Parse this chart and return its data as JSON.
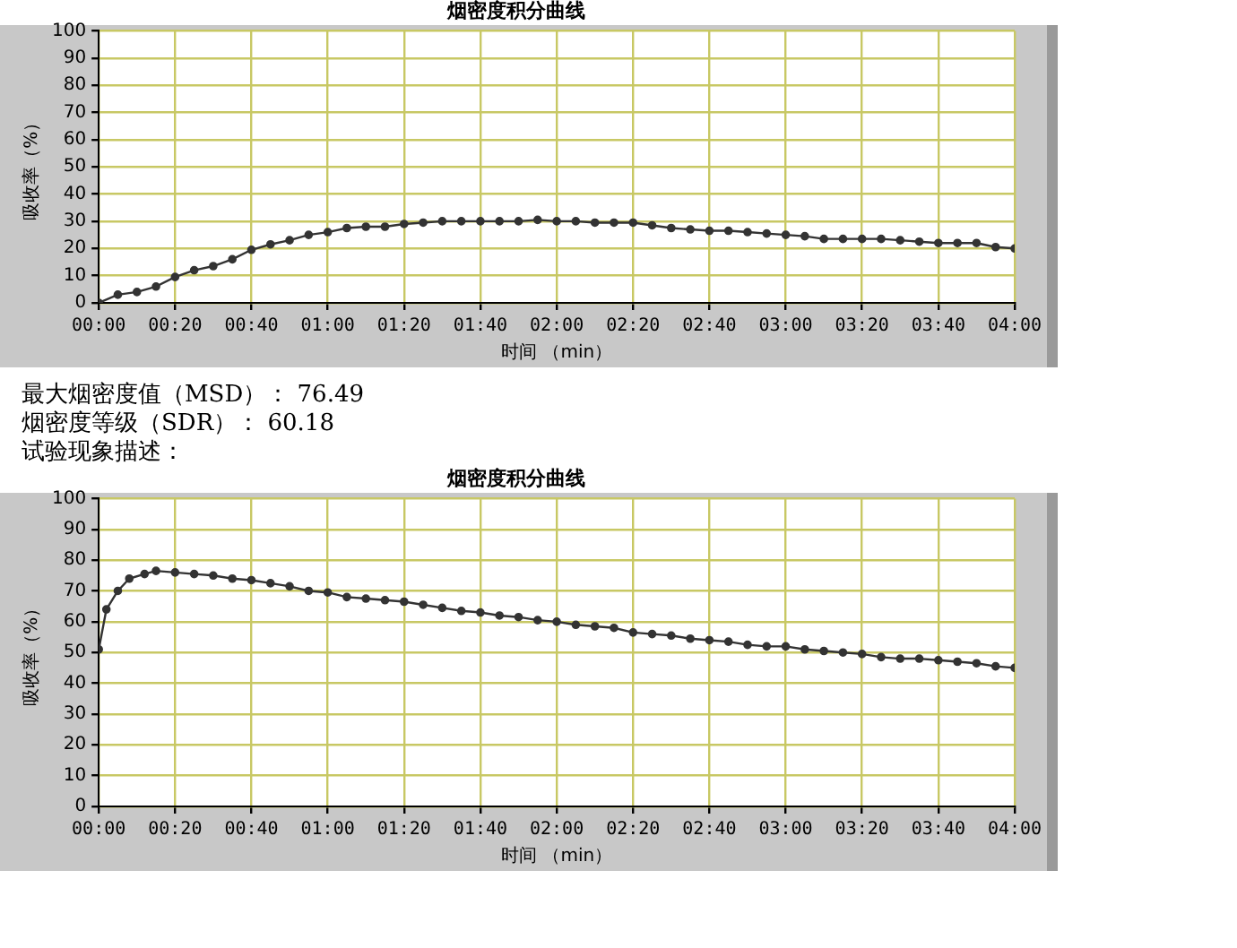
{
  "chart_data": [
    {
      "type": "line",
      "title": "烟密度积分曲线",
      "xlabel": "时间 （min）",
      "ylabel": "吸收率（%）",
      "x": [
        0,
        5,
        10,
        15,
        20,
        25,
        30,
        35,
        40,
        45,
        50,
        55,
        60,
        65,
        70,
        75,
        80,
        85,
        90,
        95,
        100,
        105,
        110,
        115,
        120,
        125,
        130,
        135,
        140,
        145,
        150,
        155,
        160,
        165,
        170,
        175,
        180,
        185,
        190,
        195,
        200,
        205,
        210,
        215,
        220,
        225,
        230,
        235,
        240
      ],
      "series": [
        {
          "color": "#333333",
          "values": [
            0,
            3,
            4,
            6,
            9.5,
            12,
            13.5,
            16,
            19.5,
            21.5,
            23,
            25,
            26,
            27.5,
            28,
            28,
            29,
            29.5,
            30,
            30,
            30,
            30,
            30,
            30.5,
            30,
            30,
            29.5,
            29.5,
            29.5,
            28.5,
            27.5,
            27,
            26.5,
            26.5,
            26,
            25.5,
            25,
            24.5,
            23.5,
            23.5,
            23.5,
            23.5,
            23,
            22.5,
            22,
            22,
            22,
            20.5,
            20
          ]
        }
      ],
      "xlim": [
        0,
        240
      ],
      "ylim": [
        0,
        100
      ],
      "xticks": [
        {
          "value": 0,
          "label": "00:00"
        },
        {
          "value": 20,
          "label": "00:20"
        },
        {
          "value": 40,
          "label": "00:40"
        },
        {
          "value": 60,
          "label": "01:00"
        },
        {
          "value": 80,
          "label": "01:20"
        },
        {
          "value": 100,
          "label": "01:40"
        },
        {
          "value": 120,
          "label": "02:00"
        },
        {
          "value": 140,
          "label": "02:20"
        },
        {
          "value": 160,
          "label": "02:40"
        },
        {
          "value": 180,
          "label": "03:00"
        },
        {
          "value": 200,
          "label": "03:20"
        },
        {
          "value": 220,
          "label": "03:40"
        },
        {
          "value": 240,
          "label": "04:00"
        }
      ],
      "yticks": [
        0,
        10,
        20,
        30,
        40,
        50,
        60,
        70,
        80,
        90,
        100
      ],
      "grid": true,
      "legend": false,
      "marker": "circle",
      "line_style": "solid"
    },
    {
      "type": "line",
      "title": "烟密度积分曲线",
      "xlabel": "时间 （min）",
      "ylabel": "吸收率（%）",
      "annotations": [
        "最大烟密度值（MSD）：  76.49",
        "烟密度等级（SDR）：  60.18",
        "试验现象描述："
      ],
      "x": [
        0,
        2,
        5,
        8,
        12,
        15,
        20,
        25,
        30,
        35,
        40,
        45,
        50,
        55,
        60,
        65,
        70,
        75,
        80,
        85,
        90,
        95,
        100,
        105,
        110,
        115,
        120,
        125,
        130,
        135,
        140,
        145,
        150,
        155,
        160,
        165,
        170,
        175,
        180,
        185,
        190,
        195,
        200,
        205,
        210,
        215,
        220,
        225,
        230,
        235,
        240
      ],
      "series": [
        {
          "color": "#333333",
          "values": [
            51,
            64,
            70,
            74,
            75.5,
            76.5,
            76,
            75.5,
            75,
            74,
            73.5,
            72.5,
            71.5,
            70,
            69.5,
            68,
            67.5,
            67,
            66.5,
            65.5,
            64.5,
            63.5,
            63,
            62,
            61.5,
            60.5,
            60,
            59,
            58.5,
            58,
            56.5,
            56,
            55.5,
            54.5,
            54,
            53.5,
            52.5,
            52,
            52,
            51,
            50.5,
            50,
            49.5,
            48.5,
            48,
            48,
            47.5,
            47,
            46.5,
            45.5,
            45
          ]
        }
      ],
      "xlim": [
        0,
        240
      ],
      "ylim": [
        0,
        100
      ],
      "xticks": [
        {
          "value": 0,
          "label": "00:00"
        },
        {
          "value": 20,
          "label": "00:20"
        },
        {
          "value": 40,
          "label": "00:40"
        },
        {
          "value": 60,
          "label": "01:00"
        },
        {
          "value": 80,
          "label": "01:20"
        },
        {
          "value": 100,
          "label": "01:40"
        },
        {
          "value": 120,
          "label": "02:00"
        },
        {
          "value": 140,
          "label": "02:20"
        },
        {
          "value": 160,
          "label": "02:40"
        },
        {
          "value": 180,
          "label": "03:00"
        },
        {
          "value": 200,
          "label": "03:20"
        },
        {
          "value": 220,
          "label": "03:40"
        },
        {
          "value": 240,
          "label": "04:00"
        }
      ],
      "yticks": [
        0,
        10,
        20,
        30,
        40,
        50,
        60,
        70,
        80,
        90,
        100
      ],
      "grid": true,
      "legend": false,
      "marker": "circle",
      "line_style": "solid"
    }
  ]
}
